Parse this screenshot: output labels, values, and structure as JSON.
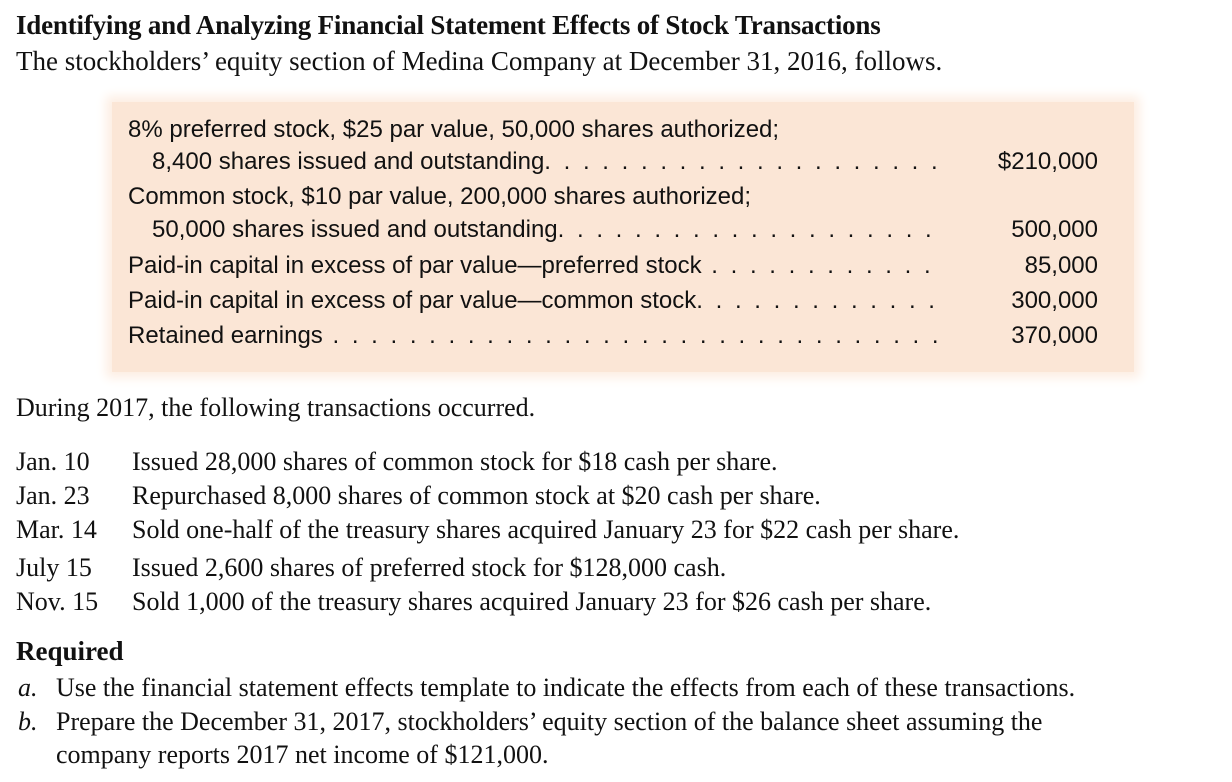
{
  "title": "Identifying and Analyzing Financial Statement Effects of Stock Transactions",
  "intro": "The stockholders’ equity section of Medina Company at December 31, 2016, follows.",
  "equity": {
    "preferred_line1": "8% preferred stock, $25 par value, 50,000 shares authorized;",
    "preferred_line2": "8,400 shares issued and outstanding",
    "preferred_amount": "$210,000",
    "common_line1": "Common stock, $10 par value, 200,000 shares authorized;",
    "common_line2": "50,000 shares issued and outstanding",
    "common_amount": "500,000",
    "apic_pref_label": "Paid-in capital in excess of par value—preferred stock",
    "apic_pref_amount": "85,000",
    "apic_common_label": "Paid-in capital in excess of par value—common stock",
    "apic_common_amount": "300,000",
    "retained_label": "Retained earnings",
    "retained_amount": "370,000"
  },
  "during": "During 2017, the following transactions occurred.",
  "transactions": [
    {
      "date": "Jan. 10",
      "text": "Issued 28,000 shares of common stock for $18 cash per share."
    },
    {
      "date": "Jan. 23",
      "text": "Repurchased 8,000 shares of common stock at $20 cash per share."
    },
    {
      "date": "Mar. 14",
      "text": "Sold one-half of the treasury shares acquired January 23 for $22 cash per share."
    },
    {
      "date": "July 15",
      "text": "Issued 2,600 shares of preferred stock for $128,000 cash."
    },
    {
      "date": "Nov. 15",
      "text": "Sold 1,000 of the treasury shares acquired January 23 for $26 cash per share."
    }
  ],
  "required": {
    "heading": "Required",
    "items": [
      {
        "letter": "a.",
        "lines": [
          "Use the financial statement effects template to indicate the effects from each of these transactions."
        ]
      },
      {
        "letter": "b.",
        "lines": [
          "Prepare the December 31, 2017, stockholders’ equity section of the balance sheet assuming the",
          "company reports 2017 net income of $121,000."
        ]
      }
    ]
  },
  "colors": {
    "box_background": "#fbe6d6",
    "text": "#111111"
  }
}
